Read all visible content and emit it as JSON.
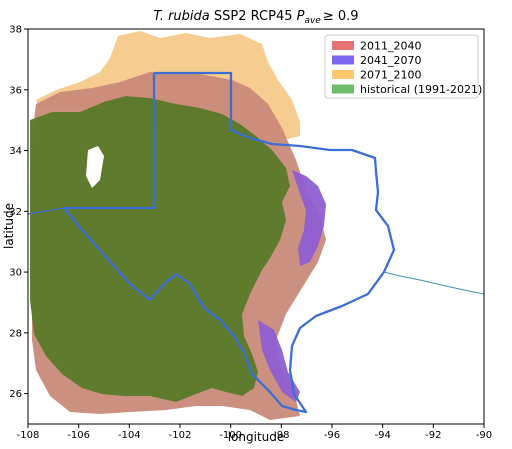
{
  "title": {
    "species": "T. rubida",
    "rest": " SSP2 RCP45 ",
    "stat": "P",
    "stat_sub": "ave",
    "threshold": "≥ 0.9"
  },
  "xlabel": "longitude",
  "ylabel": "latitude",
  "x_ticks": [
    "-108",
    "-106",
    "-104",
    "-102",
    "-100",
    "-98",
    "-96",
    "-94",
    "-92",
    "-90"
  ],
  "y_ticks": [
    "26",
    "28",
    "30",
    "32",
    "34",
    "36",
    "38"
  ],
  "legend": [
    {
      "label": "2011_2040",
      "color": "#e57373"
    },
    {
      "label": "2041_2070",
      "color": "#7b68ee"
    },
    {
      "label": "2071_2100",
      "color": "#ffc870"
    },
    {
      "label": "historical (1991-2021)",
      "color": "#6dbd6d"
    }
  ],
  "layer_colors": {
    "map_2071_2100": "#f6c98a",
    "map_2011_2040": "#c98a79",
    "map_2041_2070": "#8f5fd1",
    "map_historical": "#5b7a2a",
    "state_border": "#3b6fd6",
    "river": "#4a8fb0"
  },
  "chart_data": {
    "type": "map",
    "xlim": [
      -108,
      -90
    ],
    "ylim": [
      25,
      38
    ],
    "x_ticks": [
      -108,
      -106,
      -104,
      -102,
      -100,
      -98,
      -96,
      -94,
      -92,
      -90
    ],
    "y_ticks": [
      26,
      28,
      30,
      32,
      34,
      36,
      38
    ]
  }
}
